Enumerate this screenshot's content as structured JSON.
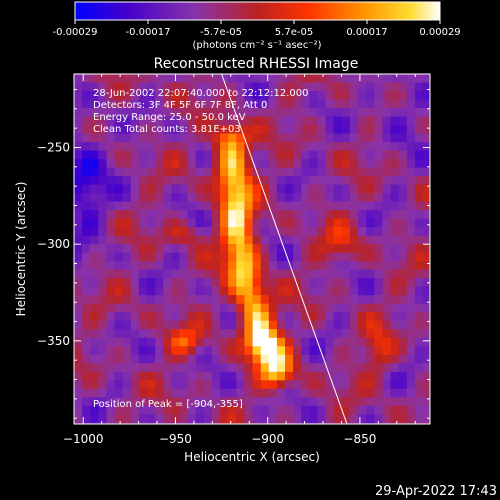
{
  "colorbar": {
    "ticks": [
      "-0.00029",
      "-0.00017",
      "-5.7e-05",
      "5.7e-05",
      "0.00017",
      "0.00029"
    ],
    "unit_label": "(photons cm⁻² s⁻¹ asec⁻²)",
    "colors": [
      "#0000ff",
      "#4400cc",
      "#8833aa",
      "#bb2222",
      "#ff3300",
      "#ff9900",
      "#ffdd33",
      "#ffffff"
    ]
  },
  "header": {
    "title": "Reconstructed RHESSI Image",
    "info_lines": [
      "28-Jun-2002 22:07:40.000 to 22:12:12.000",
      "Detectors: 3F 4F 5F 6F 7F 8F, Att 0",
      "Energy Range: 25.0 - 50.0 keV",
      "Clean    Total counts: 3.81E+03"
    ]
  },
  "annotation": {
    "peak_label": "Position of Peak = [-904,-355]"
  },
  "footer": {
    "timestamp": "29-Apr-2022 17:43"
  },
  "chart_data": {
    "type": "heatmap",
    "title": "Reconstructed RHESSI Image",
    "xlabel": "Heliocentric X (arcsec)",
    "ylabel": "Heliocentric Y (arcsec)",
    "xlim": [
      -1005,
      -812
    ],
    "ylim": [
      -393,
      -212
    ],
    "x_ticks": [
      -1000,
      -950,
      -900,
      -850
    ],
    "y_ticks": [
      -250,
      -300,
      -350
    ],
    "colorbar_range": [
      -0.00029,
      0.00029
    ],
    "peak": [
      -904,
      -355
    ],
    "limb_line": {
      "x": [
        -925,
        -857
      ],
      "y": [
        -212,
        -393
      ]
    },
    "hot_ridge": [
      [
        -920,
        -247
      ],
      [
        -919,
        -258
      ],
      [
        -918,
        -270
      ],
      [
        -917,
        -283
      ],
      [
        -916,
        -296
      ],
      [
        -914,
        -309
      ],
      [
        -911,
        -322
      ],
      [
        -907,
        -335
      ],
      [
        -903,
        -347
      ],
      [
        -899,
        -357
      ],
      [
        -895,
        -365
      ]
    ]
  }
}
